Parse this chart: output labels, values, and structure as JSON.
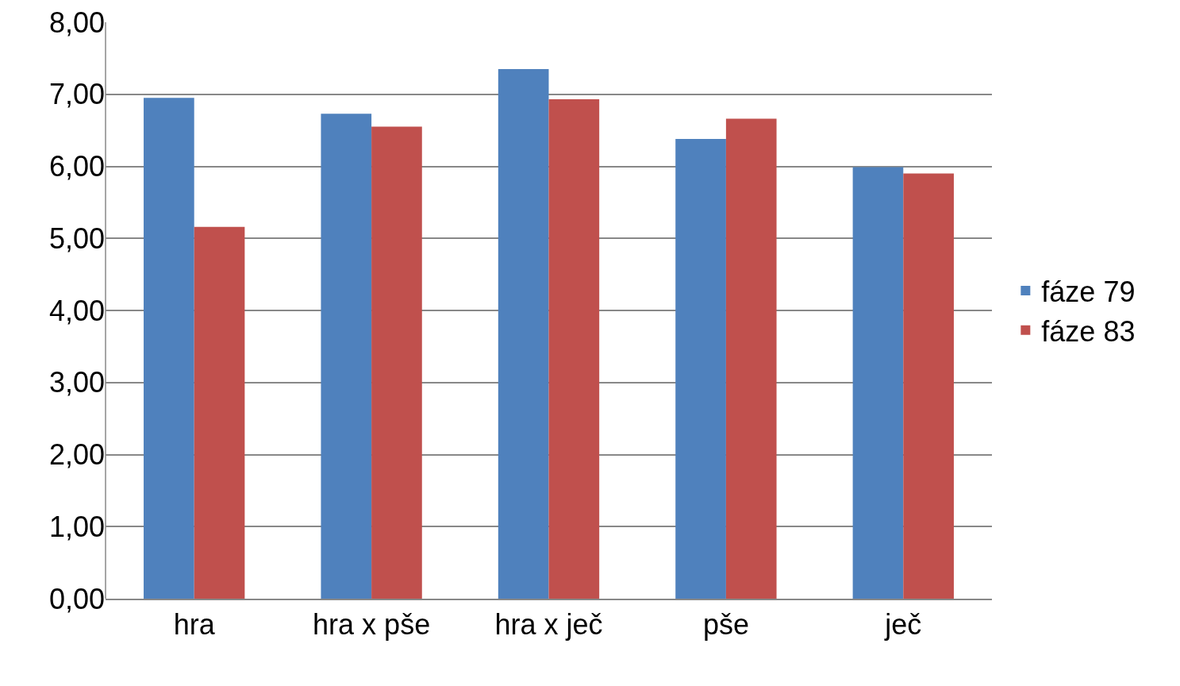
{
  "chart_data": {
    "type": "bar",
    "categories": [
      "hra",
      "hra x pše",
      "hra x ječ",
      "pše",
      "ječ"
    ],
    "series": [
      {
        "name": "fáze 79",
        "color": "#4f81bd",
        "values": [
          6.95,
          6.73,
          7.35,
          6.38,
          5.99
        ]
      },
      {
        "name": "fáze 83",
        "color": "#c0504d",
        "values": [
          5.16,
          6.55,
          6.93,
          6.66,
          5.9
        ]
      }
    ],
    "ylim": [
      0,
      8
    ],
    "yticks": [
      {
        "value": 0,
        "label": "0,00"
      },
      {
        "value": 1,
        "label": "1,00"
      },
      {
        "value": 2,
        "label": "2,00"
      },
      {
        "value": 3,
        "label": "3,00"
      },
      {
        "value": 4,
        "label": "4,00"
      },
      {
        "value": 5,
        "label": "5,00"
      },
      {
        "value": 6,
        "label": "6,00"
      },
      {
        "value": 7,
        "label": "7,00"
      },
      {
        "value": 8,
        "label": "8,00"
      }
    ],
    "grid": "y",
    "legend": "right"
  }
}
